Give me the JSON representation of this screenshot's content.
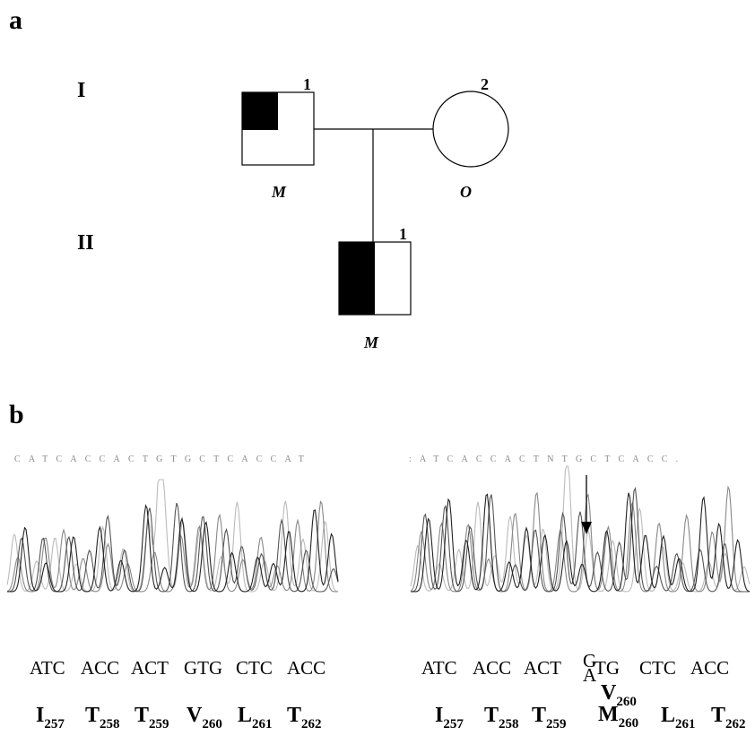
{
  "panel_a": {
    "label": "a",
    "generations": [
      "I",
      "II"
    ],
    "individuals": [
      {
        "number": "1",
        "genotype": "M"
      },
      {
        "number": "2",
        "genotype": "O"
      },
      {
        "number": "1",
        "genotype": "M"
      }
    ]
  },
  "panel_b": {
    "label": "b",
    "left": {
      "base_calls": "CATCACCACTGTGCTCACCAT",
      "codons": [
        "ATC",
        "ACC",
        "ACT",
        "GTG",
        "CTC",
        "ACC"
      ],
      "residues": [
        {
          "aa": "I",
          "pos": "257"
        },
        {
          "aa": "T",
          "pos": "258"
        },
        {
          "aa": "T",
          "pos": "259"
        },
        {
          "aa": "V",
          "pos": "260"
        },
        {
          "aa": "L",
          "pos": "261"
        },
        {
          "aa": "T",
          "pos": "262"
        }
      ]
    },
    "right": {
      "base_calls": ":ATCACCACTNTGCTCACC.",
      "codons": [
        "ATC",
        "ACC",
        "ACT",
        {
          "top": "G",
          "bottom": "A",
          "rest": "TG"
        },
        "CTC",
        "ACC"
      ],
      "residues": [
        {
          "aa": "I",
          "pos": "257"
        },
        {
          "aa": "T",
          "pos": "258"
        },
        {
          "aa": "T",
          "pos": "259"
        },
        {
          "aa": "V",
          "pos": "260",
          "alt_aa": "M",
          "alt_pos": "260"
        },
        {
          "aa": "L",
          "pos": "261"
        },
        {
          "aa": "T",
          "pos": "262"
        }
      ]
    }
  }
}
